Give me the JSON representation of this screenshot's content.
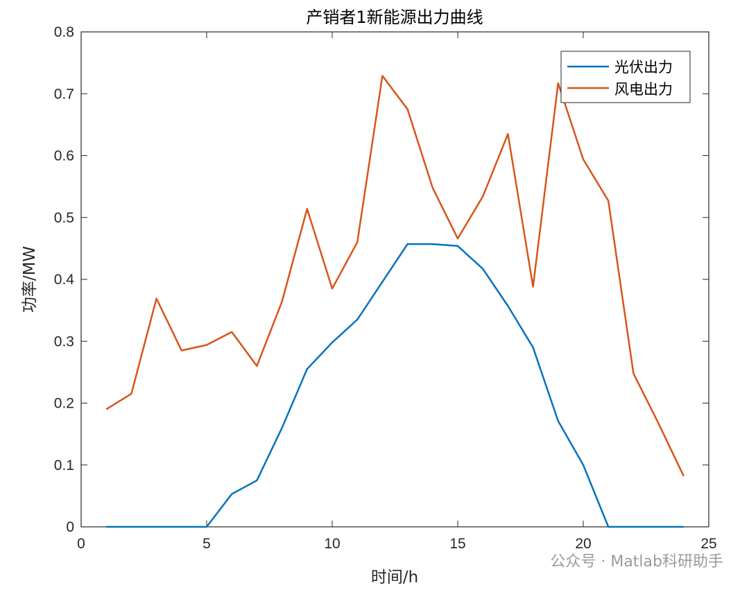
{
  "chart_data": {
    "type": "line",
    "title": "产销者1新能源出力曲线",
    "xlabel": "时间/h",
    "ylabel": "功率/MW",
    "xlim": [
      0,
      25
    ],
    "ylim": [
      0,
      0.8
    ],
    "xticks": [
      "0",
      "5",
      "10",
      "15",
      "20",
      "25"
    ],
    "yticks": [
      "0",
      "0.1",
      "0.2",
      "0.3",
      "0.4",
      "0.5",
      "0.6",
      "0.7",
      "0.8"
    ],
    "grid": false,
    "legend_position": "top-right",
    "x": [
      1,
      2,
      3,
      4,
      5,
      6,
      7,
      8,
      9,
      10,
      11,
      12,
      13,
      14,
      15,
      16,
      17,
      18,
      19,
      20,
      21,
      22,
      23,
      24
    ],
    "series": [
      {
        "name": "光伏出力",
        "color": "#0072BD",
        "values": [
          0,
          0,
          0,
          0,
          0,
          0.053,
          0.075,
          0.16,
          0.255,
          0.298,
          0.335,
          0.396,
          0.457,
          0.457,
          0.454,
          0.417,
          0.357,
          0.29,
          0.171,
          0.1,
          0,
          0,
          0,
          0
        ]
      },
      {
        "name": "风电出力",
        "color": "#D95319",
        "values": [
          0.19,
          0.215,
          0.369,
          0.285,
          0.294,
          0.315,
          0.26,
          0.364,
          0.514,
          0.385,
          0.46,
          0.729,
          0.675,
          0.548,
          0.466,
          0.534,
          0.635,
          0.388,
          0.717,
          0.594,
          0.527,
          0.248,
          0.167,
          0.082
        ]
      }
    ]
  },
  "watermark": "公众号 · Matlab科研助手"
}
